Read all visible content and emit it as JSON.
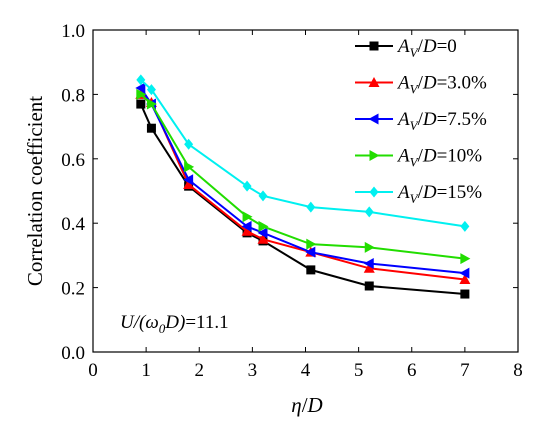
{
  "chart_data": {
    "type": "line",
    "xlabel": "η/D",
    "ylabel": "Correlation coefficient",
    "xlim": [
      0,
      8
    ],
    "ylim": [
      0.0,
      1.0
    ],
    "xticks": [
      "0",
      "1",
      "2",
      "3",
      "4",
      "5",
      "6",
      "7",
      "8"
    ],
    "yticks": [
      "0.0",
      "0.2",
      "0.4",
      "0.6",
      "0.8",
      "1.0"
    ],
    "annotation": "U/(ω0D)=11.1",
    "legend_position": "top-right",
    "series": [
      {
        "name": "AV/D=0",
        "color": "#000000",
        "marker": "square",
        "points": [
          [
            0.9,
            0.77
          ],
          [
            1.1,
            0.695
          ],
          [
            1.8,
            0.515
          ],
          [
            2.9,
            0.37
          ],
          [
            3.2,
            0.345
          ],
          [
            4.1,
            0.255
          ],
          [
            5.2,
            0.205
          ],
          [
            7.0,
            0.18
          ]
        ]
      },
      {
        "name": "AV/D=3.0%",
        "color": "#ff0000",
        "marker": "triangle-up",
        "points": [
          [
            0.9,
            0.8
          ],
          [
            1.1,
            0.775
          ],
          [
            1.8,
            0.52
          ],
          [
            2.9,
            0.375
          ],
          [
            3.2,
            0.35
          ],
          [
            4.1,
            0.31
          ],
          [
            5.2,
            0.26
          ],
          [
            7.0,
            0.225
          ]
        ]
      },
      {
        "name": "AV/D=7.5%",
        "color": "#0000ff",
        "marker": "triangle-left",
        "points": [
          [
            0.9,
            0.82
          ],
          [
            1.1,
            0.77
          ],
          [
            1.8,
            0.535
          ],
          [
            2.9,
            0.39
          ],
          [
            3.2,
            0.37
          ],
          [
            4.1,
            0.31
          ],
          [
            5.2,
            0.275
          ],
          [
            7.0,
            0.245
          ]
        ]
      },
      {
        "name": "AV/D=10%",
        "color": "#22dd00",
        "marker": "triangle-right",
        "points": [
          [
            0.9,
            0.8
          ],
          [
            1.1,
            0.77
          ],
          [
            1.8,
            0.575
          ],
          [
            2.9,
            0.42
          ],
          [
            3.2,
            0.39
          ],
          [
            4.1,
            0.335
          ],
          [
            5.2,
            0.325
          ],
          [
            7.0,
            0.29
          ]
        ]
      },
      {
        "name": "AV/D=15%",
        "color": "#00f0f0",
        "marker": "diamond",
        "points": [
          [
            0.9,
            0.845
          ],
          [
            1.1,
            0.815
          ],
          [
            1.8,
            0.645
          ],
          [
            2.9,
            0.515
          ],
          [
            3.2,
            0.485
          ],
          [
            4.1,
            0.45
          ],
          [
            5.2,
            0.435
          ],
          [
            7.0,
            0.39
          ]
        ]
      }
    ]
  }
}
